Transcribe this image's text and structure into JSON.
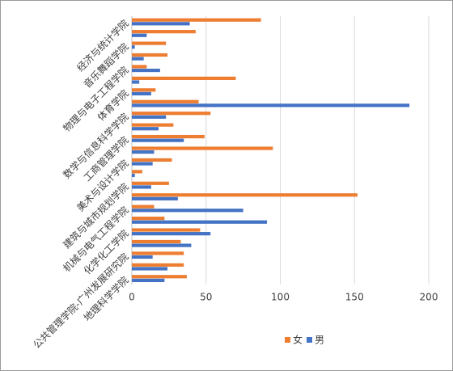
{
  "chart_data": {
    "type": "hbar",
    "categories": [
      "经济与统计学院",
      null,
      "音乐舞蹈学院",
      null,
      "物理与电子工程学院",
      null,
      "体育学院",
      null,
      "数学与信息科学学院",
      null,
      "工商管理学院",
      null,
      "美术与设计学院",
      null,
      "建筑与城市规划学院",
      null,
      "机械与电气工程学院",
      null,
      "化学化工学院",
      null,
      "公共管理学院-广州发展研究院",
      null,
      "地理科学学院"
    ],
    "series": [
      {
        "name": "女",
        "color": "#ed7d31",
        "values": [
          87,
          43,
          23,
          24,
          10,
          70,
          16,
          45,
          53,
          28,
          49,
          95,
          27,
          7,
          25,
          152,
          15,
          22,
          46,
          33,
          35,
          35,
          37
        ]
      },
      {
        "name": "男",
        "color": "#4472c4",
        "values": [
          39,
          10,
          2,
          8,
          19,
          5,
          13,
          187,
          23,
          18,
          35,
          15,
          14,
          2,
          13,
          31,
          75,
          91,
          53,
          40,
          14,
          24,
          22
        ]
      }
    ],
    "xlim": [
      0,
      200
    ],
    "xticks": [
      0,
      50,
      100,
      150,
      200
    ],
    "grid": true,
    "legend": "bottom"
  }
}
